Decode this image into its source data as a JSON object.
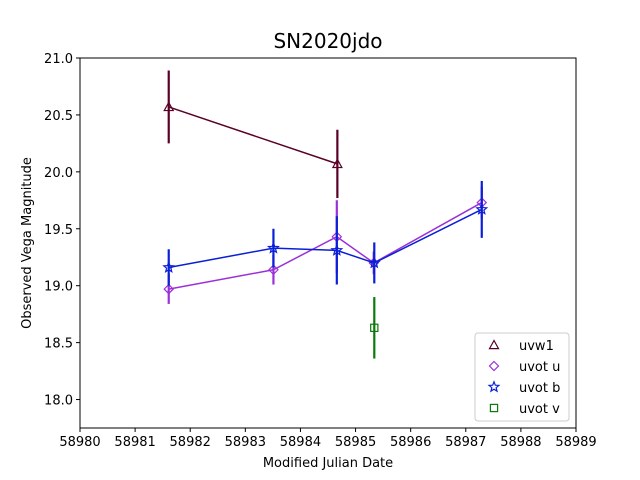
{
  "chart_data": {
    "type": "line",
    "title": "SN2020jdo",
    "xlabel": "Modified Julian Date",
    "ylabel": "Observed Vega Magnitude",
    "xlim": [
      58980,
      58989
    ],
    "ylim": [
      21.0,
      17.75
    ],
    "y_inverted": true,
    "x_ticks": [
      "58980",
      "58981",
      "58982",
      "58983",
      "58984",
      "58985",
      "58986",
      "58987",
      "58988",
      "58989"
    ],
    "y_ticks": [
      "18.0",
      "18.5",
      "19.0",
      "19.5",
      "20.0",
      "20.5",
      "21.0"
    ],
    "grid": false,
    "legend_position": "bottom-right",
    "series": [
      {
        "name": "uvw1",
        "color": "#5a0028",
        "marker": "triangle",
        "x": [
          58981.61,
          58984.67
        ],
        "y": [
          20.57,
          20.07
        ],
        "yerr": [
          0.32,
          0.3
        ]
      },
      {
        "name": "uvot u",
        "color": "#9b30d9",
        "marker": "diamond",
        "x": [
          58981.61,
          58983.51,
          58984.66,
          58985.33,
          58987.29
        ],
        "y": [
          18.97,
          19.14,
          19.43,
          19.2,
          19.73
        ],
        "yerr": [
          0.13,
          0.13,
          0.32,
          0.1,
          0.14
        ]
      },
      {
        "name": "uvot b",
        "color": "#0a1fd6",
        "marker": "star",
        "x": [
          58981.61,
          58983.51,
          58984.66,
          58985.34,
          58987.29
        ],
        "y": [
          19.16,
          19.33,
          19.31,
          19.2,
          19.67
        ],
        "yerr": [
          0.16,
          0.17,
          0.3,
          0.18,
          0.25
        ]
      },
      {
        "name": "uvot v",
        "color": "#0a7a0a",
        "marker": "square",
        "x": [
          58985.34
        ],
        "y": [
          18.63
        ],
        "yerr": [
          0.27
        ]
      }
    ]
  }
}
